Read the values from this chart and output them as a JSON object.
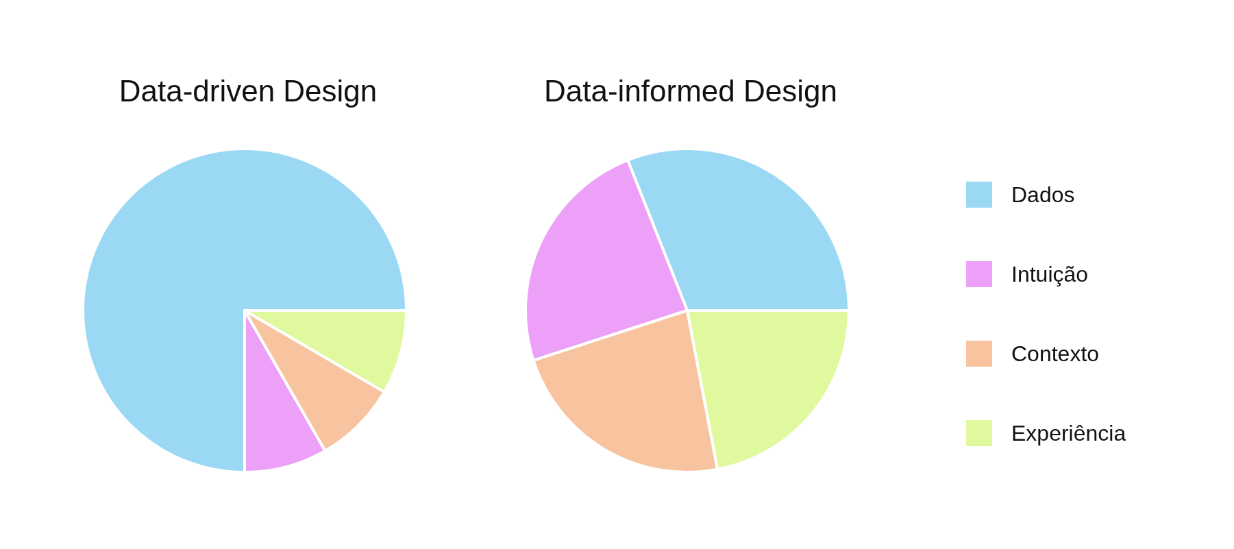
{
  "chart_data": {
    "type": "pie",
    "categories": [
      "Dados",
      "Intuição",
      "Contexto",
      "Experiência"
    ],
    "colors": [
      "#9bd8f3",
      "#eda0f7",
      "#f8c49f",
      "#e1f99e"
    ],
    "legend": "right",
    "series": [
      {
        "name": "Data-driven Design",
        "values": [
          75,
          8.3,
          8.3,
          8.4
        ]
      },
      {
        "name": "Data-informed Design",
        "values": [
          31,
          24,
          23,
          22
        ]
      }
    ]
  }
}
